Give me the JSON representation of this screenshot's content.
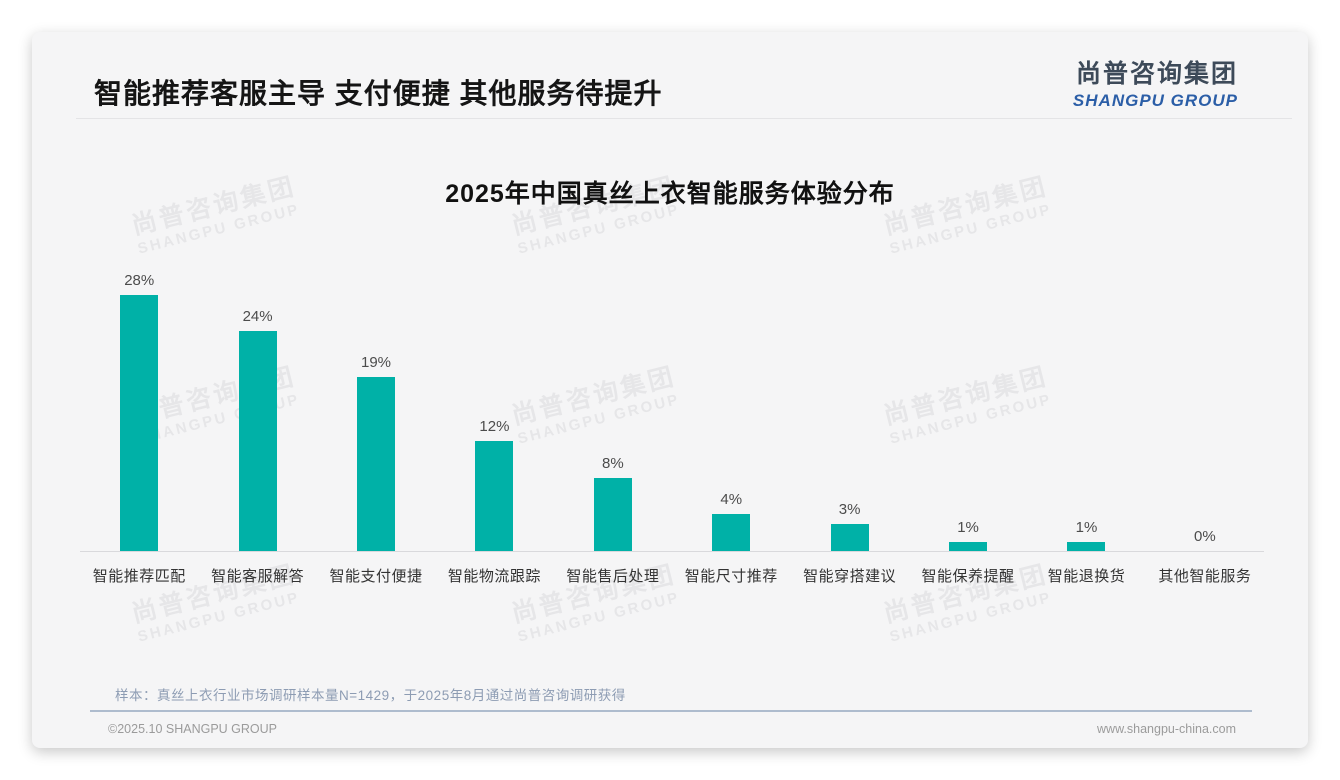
{
  "page": {
    "title": "智能推荐客服主导 支付便捷 其他服务待提升",
    "logo": {
      "cn": "尚普咨询集团",
      "en": "SHANGPU GROUP"
    },
    "watermark": {
      "line1": "尚普咨询集团",
      "line2": "SHANGPU GROUP"
    },
    "sample_note": "样本：真丝上衣行业市场调研样本量N=1429，于2025年8月通过尚普咨询调研获得",
    "footer": {
      "left": "©2025.10 SHANGPU GROUP",
      "right": "www.shangpu-china.com"
    },
    "colors": {
      "logo_blue": "#2b5ea7",
      "note_gray_blue": "#8d9cb3",
      "footer_gray": "#9b9b9b"
    }
  },
  "chart_data": {
    "type": "bar",
    "title": "2025年中国真丝上衣智能服务体验分布",
    "categories": [
      "智能推荐匹配",
      "智能客服解答",
      "智能支付便捷",
      "智能物流跟踪",
      "智能售后处理",
      "智能尺寸推荐",
      "智能穿搭建议",
      "智能保养提醒",
      "智能退换货",
      "其他智能服务"
    ],
    "values": [
      28,
      24,
      19,
      12,
      8,
      4,
      3,
      1,
      1,
      0
    ],
    "value_labels": [
      "28%",
      "24%",
      "19%",
      "12%",
      "8%",
      "4%",
      "3%",
      "1%",
      "1%",
      "0%"
    ],
    "bar_color": "#00b1a7",
    "xlabel": "",
    "ylabel": "",
    "ylim": [
      0,
      30
    ],
    "grid": false,
    "legend_position": "none",
    "axis_line_color": "#d9d9dc"
  }
}
